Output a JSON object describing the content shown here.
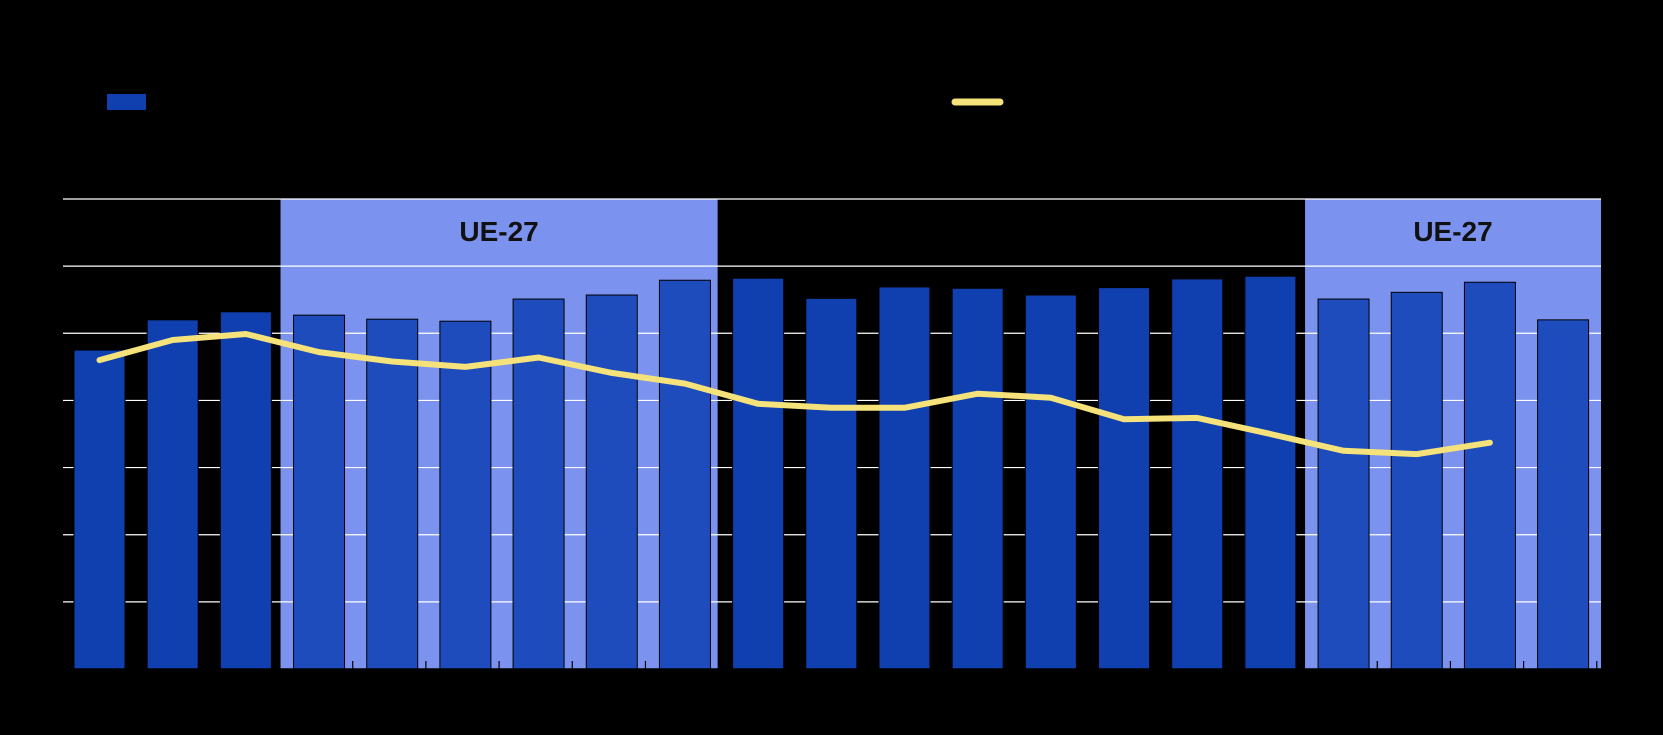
{
  "chart_data": {
    "type": "bar",
    "categories": [
      "",
      "",
      "",
      "",
      "",
      "",
      "",
      "",
      "",
      "",
      "",
      "",
      "",
      "",
      "",
      "",
      "",
      "",
      "",
      "",
      "",
      ""
    ],
    "series": [
      {
        "kind": "bar",
        "values": [
          4.75,
          5.2,
          5.32,
          5.27,
          5.21,
          5.18,
          5.51,
          5.57,
          5.79,
          5.82,
          5.52,
          5.69,
          5.67,
          5.57,
          5.68,
          5.81,
          5.85,
          5.51,
          5.61,
          5.76,
          5.2,
          null
        ]
      },
      {
        "kind": "line",
        "values": [
          4.6,
          4.9,
          4.99,
          4.72,
          4.58,
          4.5,
          4.64,
          4.41,
          4.25,
          3.95,
          3.89,
          3.89,
          4.1,
          4.04,
          3.72,
          3.74,
          3.5,
          3.25,
          3.2,
          3.37,
          null,
          null
        ]
      }
    ],
    "regions": [
      {
        "label": "UE-27",
        "from": 3,
        "to": 8
      },
      {
        "label": "UE-27",
        "from": 17,
        "to": 21
      }
    ],
    "ylim": [
      0,
      7
    ],
    "grid": true,
    "legend_position": "top",
    "colors": {
      "background": "#000000",
      "bar": "#1040b0",
      "bar_in_region": "#1f4cbc",
      "region": "#7b93ee",
      "line": "#f5e27a",
      "grid": "#ffffff",
      "region_label": "#111111"
    }
  }
}
